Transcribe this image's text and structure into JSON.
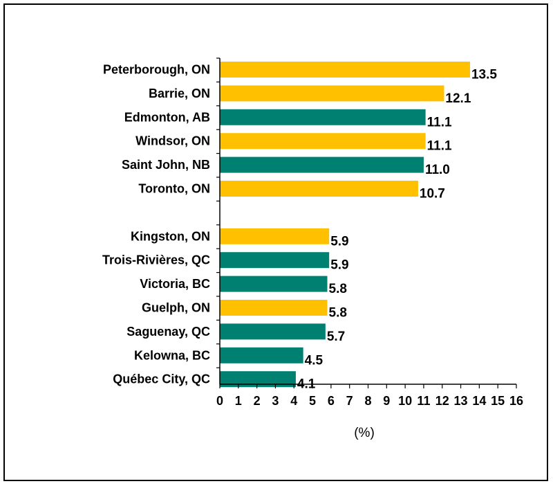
{
  "chart_data": {
    "type": "bar",
    "orientation": "horizontal",
    "title": "",
    "xlabel": "(%)",
    "ylabel": "",
    "xlim": [
      0,
      16
    ],
    "ticks": [
      "0",
      "1",
      "2",
      "3",
      "4",
      "5",
      "6",
      "7",
      "8",
      "9",
      "10",
      "11",
      "12",
      "13",
      "14",
      "15",
      "16"
    ],
    "grid": false,
    "colors": {
      "ontario": "#FFC000",
      "other": "#008070"
    },
    "groups": [
      {
        "bars": [
          {
            "label": "Peterborough, ON",
            "value": 13.5,
            "value_label": "13.5",
            "color_key": "ontario"
          },
          {
            "label": "Barrie, ON",
            "value": 12.1,
            "value_label": "12.1",
            "color_key": "ontario"
          },
          {
            "label": "Edmonton, AB",
            "value": 11.1,
            "value_label": "11.1",
            "color_key": "other"
          },
          {
            "label": "Windsor, ON",
            "value": 11.1,
            "value_label": "11.1",
            "color_key": "ontario"
          },
          {
            "label": "Saint John, NB",
            "value": 11.0,
            "value_label": "11.0",
            "color_key": "other"
          },
          {
            "label": "Toronto, ON",
            "value": 10.7,
            "value_label": "10.7",
            "color_key": "ontario"
          }
        ]
      },
      {
        "bars": [
          {
            "label": "Kingston, ON",
            "value": 5.9,
            "value_label": "5.9",
            "color_key": "ontario"
          },
          {
            "label": "Trois-Rivières, QC",
            "value": 5.9,
            "value_label": "5.9",
            "color_key": "other"
          },
          {
            "label": "Victoria, BC",
            "value": 5.8,
            "value_label": "5.8",
            "color_key": "other"
          },
          {
            "label": "Guelph, ON",
            "value": 5.8,
            "value_label": "5.8",
            "color_key": "ontario"
          },
          {
            "label": "Saguenay, QC",
            "value": 5.7,
            "value_label": "5.7",
            "color_key": "other"
          },
          {
            "label": "Kelowna, BC",
            "value": 4.5,
            "value_label": "4.5",
            "color_key": "other"
          },
          {
            "label": "Québec City, QC",
            "value": 4.1,
            "value_label": "4.1",
            "color_key": "other"
          }
        ]
      }
    ]
  }
}
